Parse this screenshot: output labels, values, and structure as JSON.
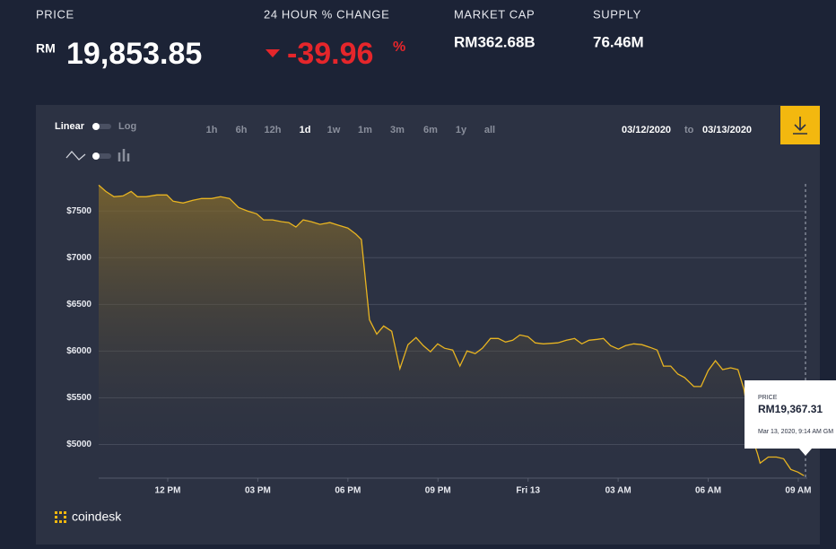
{
  "header": {
    "price": {
      "label": "PRICE",
      "currency": "RM",
      "value": "19,853.85"
    },
    "change": {
      "label": "24 HOUR % CHANGE",
      "value": "-39.96",
      "unit": "%"
    },
    "market_cap": {
      "label": "MARKET CAP",
      "value": "RM362.68B"
    },
    "supply": {
      "label": "SUPPLY",
      "value": "76.46M"
    }
  },
  "toolbar": {
    "scale": [
      "Linear",
      "Log"
    ],
    "ranges": [
      "1h",
      "6h",
      "12h",
      "1d",
      "1w",
      "1m",
      "3m",
      "6m",
      "1y",
      "all"
    ],
    "active_range": "1d",
    "date_from": "03/12/2020",
    "date_sep": "to",
    "date_to": "03/13/2020"
  },
  "chart_data": {
    "type": "area",
    "color": "#e8b421",
    "grid": true,
    "x": [
      9.7,
      9.94,
      10.21,
      10.51,
      10.78,
      10.99,
      11.28,
      11.64,
      11.97,
      12.18,
      12.51,
      12.84,
      13.13,
      13.46,
      13.76,
      14.06,
      14.36,
      14.66,
      14.96,
      15.19,
      15.49,
      15.79,
      16.03,
      16.27,
      16.51,
      16.78,
      17.07,
      17.4,
      17.7,
      18.0,
      18.27,
      18.45,
      18.72,
      18.96,
      19.19,
      19.46,
      19.73,
      20.0,
      20.27,
      20.51,
      20.75,
      20.99,
      21.22,
      21.49,
      21.73,
      21.97,
      22.24,
      22.48,
      22.75,
      23.01,
      23.25,
      23.49,
      23.73,
      24.0,
      24.24,
      24.51,
      24.99,
      25.28,
      25.55,
      25.79,
      26.03,
      26.3,
      26.51,
      26.75,
      27.01,
      27.25,
      27.52,
      27.79,
      28.06,
      28.3,
      28.51,
      28.75,
      28.99,
      29.22,
      29.52,
      29.76,
      30.0,
      30.24,
      30.48,
      30.75,
      30.99,
      31.19,
      31.43,
      31.64,
      31.73,
      32.0,
      32.27,
      32.51,
      32.75,
      32.99,
      33.19
    ],
    "values": [
      7777,
      7710,
      7653,
      7662,
      7710,
      7653,
      7653,
      7672,
      7672,
      7605,
      7586,
      7615,
      7634,
      7634,
      7653,
      7634,
      7538,
      7500,
      7471,
      7405,
      7405,
      7386,
      7376,
      7328,
      7405,
      7386,
      7357,
      7376,
      7347,
      7318,
      7252,
      7195,
      6336,
      6183,
      6269,
      6212,
      5811,
      6069,
      6145,
      6059,
      5993,
      6078,
      6031,
      6012,
      5840,
      6002,
      5974,
      6031,
      6135,
      6135,
      6097,
      6116,
      6173,
      6154,
      6088,
      6078,
      6088,
      6116,
      6135,
      6078,
      6116,
      6126,
      6135,
      6059,
      6021,
      6059,
      6078,
      6069,
      6040,
      6012,
      5840,
      5840,
      5754,
      5716,
      5621,
      5621,
      5792,
      5897,
      5802,
      5821,
      5802,
      5592,
      5103,
      4905,
      4800,
      4866,
      4866,
      4847,
      4733,
      4704,
      4666
    ],
    "xlim": [
      9.7,
      33.3
    ],
    "ylim": [
      4640,
      7800
    ],
    "yticks": [
      {
        "value": 5000,
        "label": "$5000"
      },
      {
        "value": 5500,
        "label": "$5500"
      },
      {
        "value": 6000,
        "label": "$6000"
      },
      {
        "value": 6500,
        "label": "$6500"
      },
      {
        "value": 7000,
        "label": "$7000"
      },
      {
        "value": 7500,
        "label": "$7500"
      }
    ],
    "xticks": [
      {
        "value": 12,
        "label": "12 PM"
      },
      {
        "value": 15,
        "label": "03 PM"
      },
      {
        "value": 18,
        "label": "06 PM"
      },
      {
        "value": 21,
        "label": "09 PM"
      },
      {
        "value": 24,
        "label": "Fri 13"
      },
      {
        "value": 27,
        "label": "03 AM"
      },
      {
        "value": 30,
        "label": "06 AM"
      },
      {
        "value": 33,
        "label": "09 AM"
      }
    ]
  },
  "tooltip": {
    "label": "PRICE",
    "value": "RM19,367.31",
    "date": "Mar 13, 2020, 9:14 AM GM"
  },
  "brand": "coindesk"
}
